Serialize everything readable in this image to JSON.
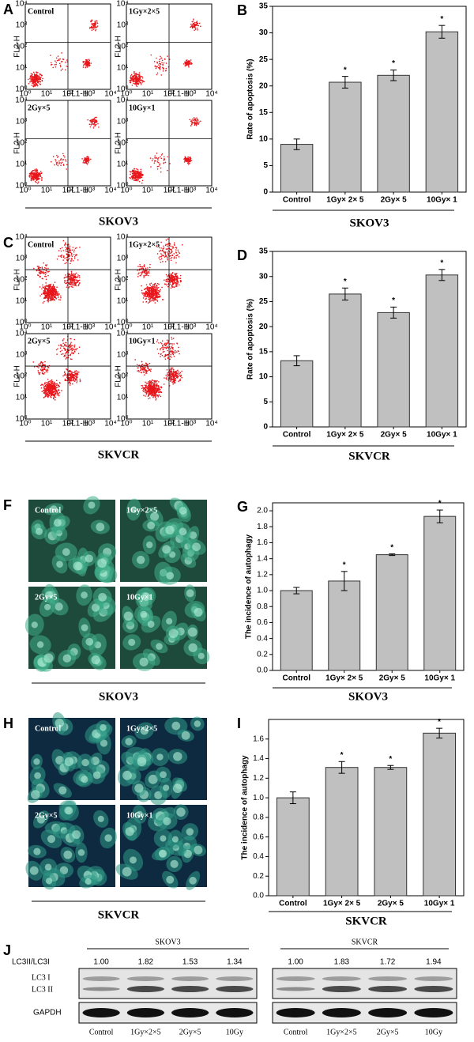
{
  "panels": {
    "A": {
      "label": "A",
      "cell_line": "SKOV3",
      "plots": [
        "Control",
        "1Gy×2×5",
        "2Gy×5",
        "10Gy×1"
      ],
      "x_axis_label": "FL1-H",
      "y_axis_label": "FL2-H",
      "axis_ticks": [
        "10⁰",
        "10¹",
        "10²",
        "10³",
        "10⁴"
      ]
    },
    "C": {
      "label": "C",
      "cell_line": "SKVCR",
      "plots": [
        "Control",
        "1Gy×2×5",
        "2Gy×5",
        "10Gy×1"
      ],
      "x_axis_label": "FL1-H",
      "y_axis_label": "FL2-H",
      "axis_ticks": [
        "10⁰",
        "10¹",
        "10²",
        "10³",
        "10⁴"
      ]
    },
    "F": {
      "label": "F",
      "cell_line": "SKOV3",
      "images": [
        "Control",
        "1Gy×2×5",
        "2Gy×5",
        "10Gy×1"
      ]
    },
    "H": {
      "label": "H",
      "cell_line": "SKVCR",
      "images": [
        "Control",
        "1Gy×2×5",
        "2Gy×5",
        "10Gy×1"
      ]
    },
    "J": {
      "label": "J",
      "ratio_label": "LC3II/LC3I",
      "band_labels": [
        "LC3 I",
        "LC3 II"
      ],
      "loading_control": "GAPDH",
      "groups": [
        {
          "cell_line": "SKOV3",
          "ratios": [
            "1.00",
            "1.82",
            "1.53",
            "1.34"
          ],
          "lanes": [
            "Control",
            "1Gy×2×5",
            "2Gy×5",
            "10Gy"
          ]
        },
        {
          "cell_line": "SKVCR",
          "ratios": [
            "1.00",
            "1.83",
            "1.72",
            "1.94"
          ],
          "lanes": [
            "Control",
            "1Gy×2×5",
            "2Gy×5",
            "10Gy"
          ]
        }
      ]
    }
  },
  "chart_data": [
    {
      "type": "bar",
      "panel_label": "B",
      "ylabel": "Rate of apoptosis (%)",
      "xlabel": "SKOV3",
      "categories": [
        "Control",
        "1Gy× 2× 5",
        "2Gy× 5",
        "10Gy× 1"
      ],
      "values": [
        9,
        20.7,
        22,
        30.2
      ],
      "errors": [
        1,
        1.1,
        1,
        1.2
      ],
      "annotations": [
        null,
        "*",
        "*",
        "*"
      ],
      "color": "#c0c0c0",
      "ylim": [
        0,
        35
      ],
      "yticks": [
        0,
        5,
        10,
        15,
        20,
        25,
        30,
        35
      ]
    },
    {
      "type": "bar",
      "panel_label": "D",
      "ylabel": "Rate of apoptosis (%)",
      "xlabel": "SKVCR",
      "categories": [
        "Control",
        "1Gy× 2× 5",
        "2Gy× 5",
        "10Gy× 1"
      ],
      "values": [
        13.2,
        26.5,
        22.8,
        30.3
      ],
      "errors": [
        1,
        1.2,
        1.1,
        1.1
      ],
      "annotations": [
        null,
        "*",
        "*",
        "*"
      ],
      "color": "#c0c0c0",
      "ylim": [
        0,
        35
      ],
      "yticks": [
        0,
        5,
        10,
        15,
        20,
        25,
        30,
        35
      ]
    },
    {
      "type": "bar",
      "panel_label": "G",
      "ylabel": "The incidence of autophagy",
      "xlabel": "SKOV3",
      "categories": [
        "Control",
        "1Gy× 2× 5",
        "2Gy× 5",
        "10Gy× 1"
      ],
      "values": [
        1.0,
        1.12,
        1.45,
        1.93
      ],
      "errors": [
        0.04,
        0.12,
        0.01,
        0.08
      ],
      "annotations": [
        null,
        "*",
        "*",
        "*"
      ],
      "color": "#c0c0c0",
      "ylim": [
        0,
        2.1
      ],
      "yticks": [
        {
          "value": 0,
          "label": "0.0"
        },
        0.2,
        0.4,
        0.6,
        0.8,
        {
          "value": 1,
          "label": "1.0"
        },
        1.2,
        1.4,
        1.6,
        1.8,
        {
          "value": 2,
          "label": "2.0"
        }
      ]
    },
    {
      "type": "bar",
      "panel_label": "I",
      "ylabel": "The incidence of autophagy",
      "xlabel": "SKVCR",
      "categories": [
        "Control",
        "1Gy× 2× 5",
        "2Gy× 5",
        "10Gy× 1"
      ],
      "values": [
        1.0,
        1.31,
        1.31,
        1.66
      ],
      "errors": [
        0.06,
        0.06,
        0.02,
        0.05
      ],
      "annotations": [
        null,
        "*",
        "*",
        "*"
      ],
      "color": "#c0c0c0",
      "ylim": [
        0,
        1.8
      ],
      "yticks": [
        {
          "value": 0,
          "label": "0.0"
        },
        0.2,
        0.4,
        0.6,
        0.8,
        {
          "value": 1,
          "label": "1.0"
        },
        1.2,
        1.4,
        1.6
      ]
    }
  ]
}
